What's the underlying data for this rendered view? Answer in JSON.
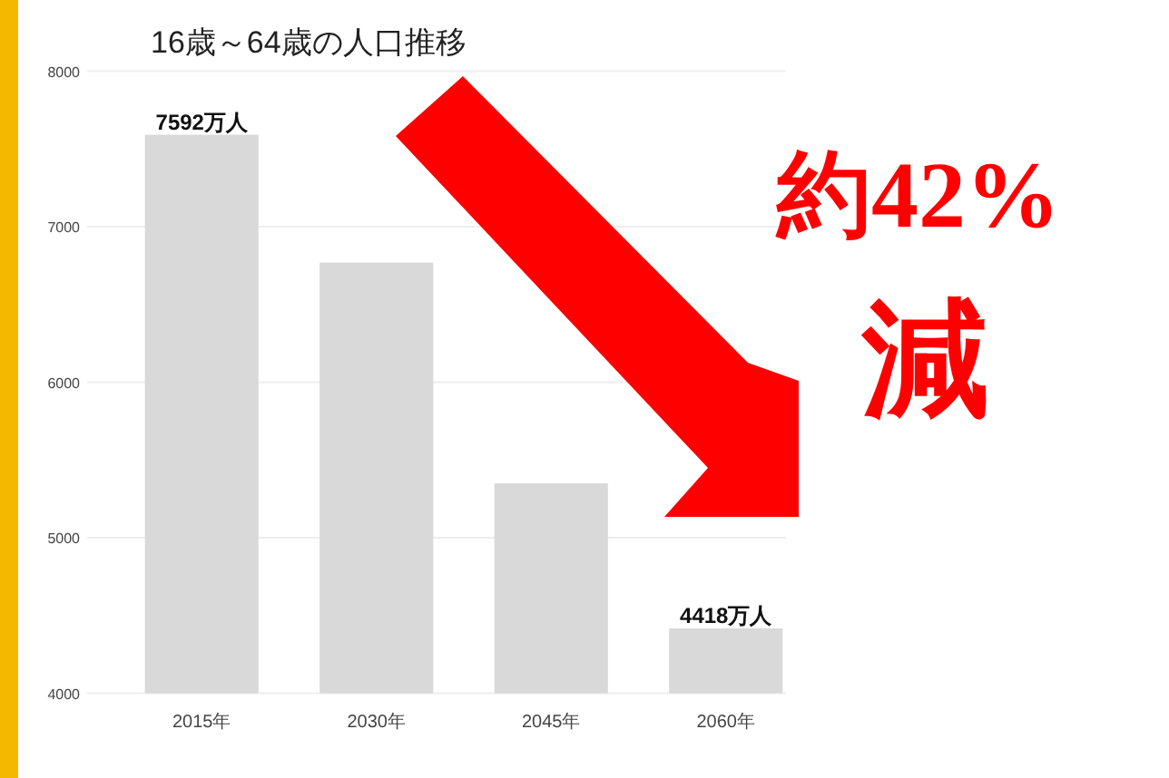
{
  "chart_data": {
    "type": "bar",
    "title": "16歳～64歳の人口推移",
    "categories": [
      "2015年",
      "2030年",
      "2045年",
      "2060年"
    ],
    "values": [
      7592,
      6770,
      5350,
      4418
    ],
    "value_labels": [
      "7592万人",
      null,
      null,
      "4418万人"
    ],
    "color": "#d9d9d9",
    "ylim": [
      4000,
      8000
    ],
    "yticks": [
      4000,
      5000,
      6000,
      7000,
      8000
    ],
    "grid": "y",
    "annotations": [
      "約42%",
      "減"
    ]
  }
}
